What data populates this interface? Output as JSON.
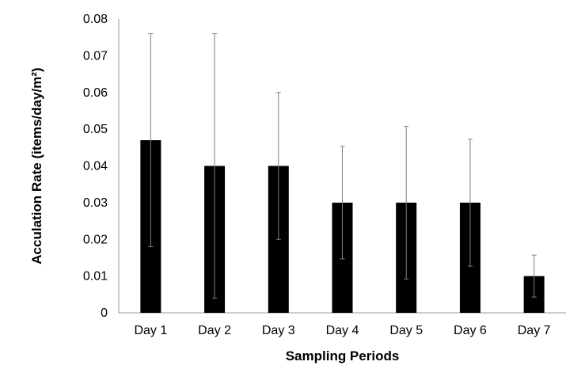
{
  "chart_data": {
    "type": "bar",
    "title": "",
    "xlabel": "Sampling Periods",
    "ylabel": "Acculation Rate (items/day/m²)",
    "categories": [
      "Day 1",
      "Day 2",
      "Day 3",
      "Day 4",
      "Day 5",
      "Day 6",
      "Day 7"
    ],
    "values": [
      0.047,
      0.04,
      0.04,
      0.03,
      0.03,
      0.03,
      0.01
    ],
    "error_bars": [
      0.029,
      0.036,
      0.02,
      0.0153,
      0.0208,
      0.0173,
      0.0057
    ],
    "ylim": [
      0,
      0.08
    ],
    "yticks": [
      "0",
      "0.01",
      "0.02",
      "0.03",
      "0.04",
      "0.05",
      "0.06",
      "0.07",
      "0.08"
    ],
    "ytick_values": [
      0,
      0.01,
      0.02,
      0.03,
      0.04,
      0.05,
      0.06,
      0.07,
      0.08
    ],
    "grid": false,
    "legend": "none",
    "bar_color": "#000000",
    "error_bar_color": "#808080"
  }
}
